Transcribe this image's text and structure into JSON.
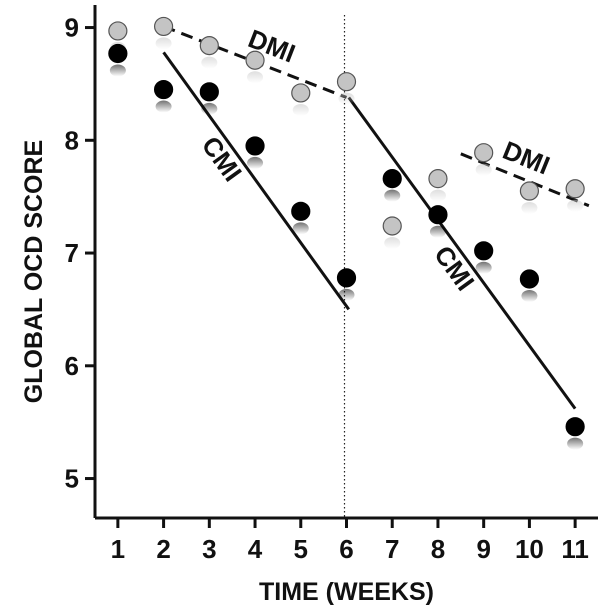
{
  "chart_data": {
    "type": "scatter",
    "xlabel": "TIME (WEEKS)",
    "ylabel": "GLOBAL OCD SCORE",
    "xlim": [
      0.5,
      11.5
    ],
    "ylim": [
      4.65,
      9.2
    ],
    "x_ticks": [
      1,
      2,
      3,
      4,
      5,
      6,
      7,
      8,
      9,
      10,
      11
    ],
    "y_ticks": [
      5,
      6,
      7,
      8,
      9
    ],
    "grid": false,
    "divider_x": 6,
    "series": [
      {
        "name": "CMI",
        "marker_color": "#000000",
        "points": [
          {
            "x": 1,
            "y": 8.77
          },
          {
            "x": 2,
            "y": 8.45
          },
          {
            "x": 3,
            "y": 8.43
          },
          {
            "x": 4,
            "y": 7.95
          },
          {
            "x": 5,
            "y": 7.37
          },
          {
            "x": 6,
            "y": 6.78
          },
          {
            "x": 7,
            "y": 7.66
          },
          {
            "x": 8,
            "y": 7.34
          },
          {
            "x": 9,
            "y": 7.02
          },
          {
            "x": 10,
            "y": 6.77
          },
          {
            "x": 11,
            "y": 5.46
          }
        ],
        "trend_lines": [
          {
            "label": "CMI",
            "style": "solid",
            "x": [
              2,
              6.05
            ],
            "y": [
              8.78,
              6.5
            ]
          },
          {
            "label": "CMI",
            "style": "solid",
            "x": [
              6.05,
              11
            ],
            "y": [
              8.38,
              5.62
            ]
          }
        ]
      },
      {
        "name": "DMI",
        "marker_color": "#c4c4c4",
        "points": [
          {
            "x": 1,
            "y": 8.97
          },
          {
            "x": 2,
            "y": 9.01
          },
          {
            "x": 3,
            "y": 8.84
          },
          {
            "x": 4,
            "y": 8.71
          },
          {
            "x": 5,
            "y": 8.42
          },
          {
            "x": 6,
            "y": 8.52
          },
          {
            "x": 7,
            "y": 7.24
          },
          {
            "x": 8,
            "y": 7.66
          },
          {
            "x": 9,
            "y": 7.89
          },
          {
            "x": 10,
            "y": 7.55
          },
          {
            "x": 11,
            "y": 7.57
          }
        ],
        "trend_lines": [
          {
            "label": "DMI",
            "style": "dashed",
            "x": [
              2,
              6
            ],
            "y": [
              9.01,
              8.38
            ]
          },
          {
            "label": "DMI",
            "style": "dashed",
            "x": [
              8.5,
              11.3
            ],
            "y": [
              7.88,
              7.42
            ]
          }
        ]
      }
    ]
  }
}
